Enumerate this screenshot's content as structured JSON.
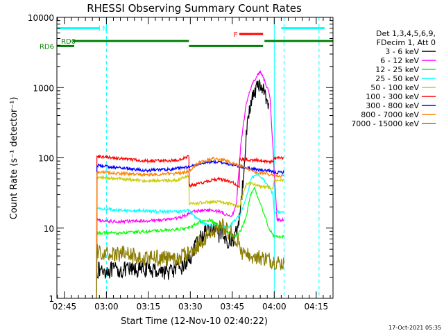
{
  "chart_data": {
    "type": "line",
    "title": "RHESSI Observing Summary Count Rates",
    "xlabel": "Start Time (12-Nov-10 02:40:22)",
    "ylabel": "Count Rate (s⁻¹ detector⁻¹)",
    "yscale": "log",
    "ylim": [
      1,
      10000
    ],
    "xlim_minutes": [
      2.3,
      101
    ],
    "x_ticks": [
      {
        "label": "02:45",
        "m": 5
      },
      {
        "label": "03:00",
        "m": 20
      },
      {
        "label": "03:15",
        "m": 35
      },
      {
        "label": "03:30",
        "m": 50
      },
      {
        "label": "03:45",
        "m": 65
      },
      {
        "label": "04:00",
        "m": 80
      },
      {
        "label": "04:15",
        "m": 95
      }
    ],
    "y_ticks": [
      {
        "label": "1",
        "v": 1
      },
      {
        "label": "10",
        "v": 10
      },
      {
        "label": "100",
        "v": 100
      },
      {
        "label": "1000",
        "v": 1000
      },
      {
        "label": "10000",
        "v": 10000
      }
    ],
    "legend_header": [
      "Det 1,3,4,5,6,9,",
      "FDecim 1, Att 0"
    ],
    "legend_position": "right",
    "series": [
      {
        "name": "3 - 6 keV",
        "color": "#000000",
        "x": [
          16.5,
          25,
          35,
          42,
          46,
          49.5,
          53,
          56,
          59,
          62,
          65,
          67,
          69,
          70,
          72,
          74,
          75.5,
          76.5,
          78
        ],
        "y": [
          2.5,
          2.5,
          2.6,
          2.4,
          2.6,
          3.5,
          6.5,
          9.5,
          9.0,
          7.0,
          6.5,
          10.0,
          50,
          250,
          700,
          1000,
          1100,
          850,
          600
        ]
      },
      {
        "name": "6 - 12 keV",
        "color": "#ff00ff",
        "x": [
          16.5,
          16.6,
          20,
          30,
          40,
          46,
          49.5,
          52,
          55,
          58,
          61,
          63.5,
          65,
          66.5,
          68,
          70,
          72,
          74,
          75,
          76,
          77,
          78,
          78.5,
          81,
          83.5
        ],
        "y": [
          1,
          13,
          12.5,
          12.5,
          13,
          14,
          16,
          17.5,
          18,
          18,
          17,
          15,
          15,
          22,
          150,
          600,
          1100,
          1500,
          1700,
          1400,
          1100,
          900,
          700,
          13,
          13
        ]
      },
      {
        "name": "12 - 25 keV",
        "color": "#00ff00",
        "x": [
          16.5,
          16.6,
          25,
          35,
          45,
          49.5,
          53,
          57,
          60,
          63,
          66,
          68,
          70,
          71.5,
          73,
          75,
          77,
          78,
          80,
          83.5
        ],
        "y": [
          1,
          8.5,
          8.5,
          9,
          9.5,
          10,
          12,
          13,
          11,
          9.0,
          7.5,
          9,
          15,
          30,
          38,
          22,
          14,
          10,
          7.5,
          7.5
        ]
      },
      {
        "name": "25 - 50 keV",
        "color": "#00ffff",
        "x": [
          16.5,
          16.6,
          25,
          35,
          45,
          49.5,
          52,
          56,
          60,
          64,
          68,
          70,
          72,
          74,
          76,
          78,
          79.5,
          80,
          83.5
        ],
        "y": [
          1,
          19,
          18,
          17.5,
          17,
          18,
          14,
          11,
          10.5,
          10.5,
          16,
          28,
          52,
          58,
          50,
          40,
          30,
          17,
          17
        ]
      },
      {
        "name": "50 - 100 keV",
        "color": "#cccc00",
        "x": [
          16.5,
          16.6,
          25,
          35,
          45,
          49.5,
          49.6,
          55,
          60,
          65,
          67.5,
          70,
          72,
          74,
          77,
          79.5,
          80,
          83.5
        ],
        "y": [
          1,
          53,
          50,
          47,
          48,
          55,
          22,
          23,
          24,
          22,
          20,
          42,
          44,
          40,
          38,
          37,
          48,
          48
        ]
      },
      {
        "name": "100 - 300 keV",
        "color": "#ff0000",
        "x": [
          16.5,
          16.6,
          25,
          35,
          45,
          49.5,
          49.6,
          55,
          60,
          65,
          67.5,
          67.6,
          72,
          76,
          79.5,
          80,
          83.5
        ],
        "y": [
          1,
          105,
          97,
          90,
          92,
          105,
          40,
          45,
          50,
          45,
          38,
          95,
          93,
          90,
          88,
          100,
          100
        ]
      },
      {
        "name": "300 - 800 keV",
        "color": "#0000ff",
        "x": [
          16.5,
          16.6,
          25,
          35,
          45,
          49.5,
          53,
          58,
          62,
          66,
          70,
          74,
          78,
          80,
          83.5
        ],
        "y": [
          1,
          78,
          72,
          66,
          70,
          74,
          82,
          88,
          85,
          78,
          72,
          68,
          65,
          62,
          62
        ]
      },
      {
        "name": "800 - 7000 keV",
        "color": "#ff8000",
        "x": [
          16.5,
          16.6,
          25,
          35,
          45,
          49.5,
          53,
          58,
          62,
          66,
          70,
          74,
          78,
          80,
          83.5
        ],
        "y": [
          1,
          63,
          60,
          57,
          60,
          64,
          85,
          98,
          93,
          82,
          70,
          62,
          58,
          55,
          55
        ]
      },
      {
        "name": "7000 - 15000 keV",
        "color": "#8b7d00",
        "x": [
          16.5,
          16.6,
          25,
          35,
          45,
          50,
          54,
          58,
          61,
          64,
          67.5,
          68,
          72,
          76,
          80,
          82,
          83.5
        ],
        "y": [
          1,
          4.8,
          4.3,
          3.8,
          3.5,
          4.5,
          6.5,
          9,
          11,
          9,
          6.5,
          4.2,
          4.0,
          3.8,
          3.4,
          3.2,
          3.2
        ]
      }
    ],
    "annotations": [
      {
        "label": "N",
        "color": "#00ffff",
        "bars": [
          [
            2.3,
            17.5
          ],
          [
            82.5,
            98
          ]
        ],
        "level": 7000,
        "tick_at": [
          17.5
        ],
        "label_at": 18.5
      },
      {
        "label": "F",
        "color": "#ff0000",
        "bars": [
          [
            67.5,
            72.5
          ],
          [
            72.5,
            76
          ]
        ],
        "level": 5800,
        "label_at": 65.5
      },
      {
        "label": "RD0",
        "color": "#008000",
        "bars": [
          [
            8,
            49.5
          ],
          [
            76.5,
            101
          ]
        ],
        "level": 4600,
        "label_at": 3.8
      },
      {
        "label": "RD6",
        "color": "#008000",
        "bars": [
          [
            2.3,
            8.5
          ],
          [
            49.5,
            76
          ]
        ],
        "level": 3900,
        "label_at": -0.5,
        "label_outside": true
      }
    ],
    "vertical_markers": [
      {
        "m": 2.3,
        "color": "#00ffff",
        "style": "solid"
      },
      {
        "m": 20,
        "color": "#00ffff",
        "style": "dashed"
      },
      {
        "m": 80,
        "color": "#00ffff",
        "style": "solid"
      },
      {
        "m": 83.5,
        "color": "#00ffff",
        "style": "dashed"
      },
      {
        "m": 96,
        "color": "#00ffff",
        "style": "dashed"
      }
    ],
    "footer": "17-Oct-2021 05:35"
  }
}
